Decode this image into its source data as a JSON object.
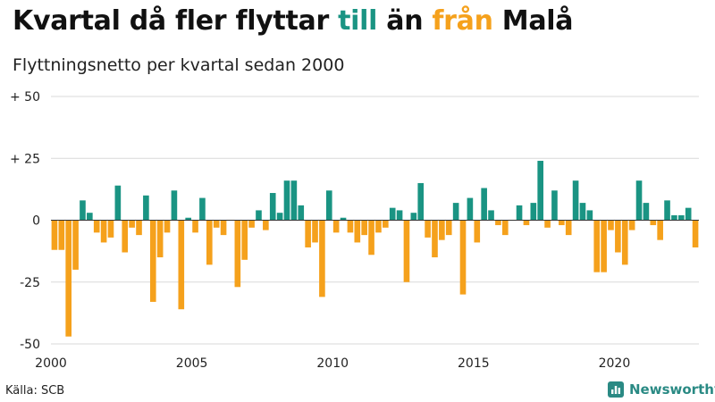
{
  "header": {
    "title_parts": [
      {
        "text": "Kvartal då fler flyttar ",
        "color": "#111111"
      },
      {
        "text": "till",
        "color": "#1a9483"
      },
      {
        "text": " än ",
        "color": "#111111"
      },
      {
        "text": "från",
        "color": "#f5a11c"
      },
      {
        "text": " Malå",
        "color": "#111111"
      }
    ],
    "subtitle": "Flyttningsnetto per kvartal sedan 2000"
  },
  "footer": {
    "source": "Källa: SCB",
    "logo_text": "Newsworthy",
    "logo_icon": "bar-chart-badge-icon"
  },
  "colors": {
    "positive": "#1a9483",
    "negative": "#f5a11c",
    "grid": "#d9d9d9",
    "zero_line": "#333333"
  },
  "chart_data": {
    "type": "bar",
    "title": "Kvartal då fler flyttar till än från Malå",
    "subtitle": "Flyttningsnetto per kvartal sedan 2000",
    "xlabel": "",
    "ylabel": "",
    "x_start": 2000,
    "periods_per_year": 4,
    "ylim": [
      -50,
      50
    ],
    "yticks": [
      {
        "value": 50,
        "label": "+ 50"
      },
      {
        "value": 25,
        "label": "+ 25"
      },
      {
        "value": 0,
        "label": "0"
      },
      {
        "value": -25,
        "label": "-25"
      },
      {
        "value": -50,
        "label": "-50"
      }
    ],
    "xticks": [
      {
        "value": 2000,
        "label": "2000"
      },
      {
        "value": 2005,
        "label": "2005"
      },
      {
        "value": 2010,
        "label": "2010"
      },
      {
        "value": 2015,
        "label": "2015"
      },
      {
        "value": 2020,
        "label": "2020"
      }
    ],
    "grid": true,
    "values": [
      -12,
      -12,
      -47,
      -20,
      8,
      3,
      -5,
      -9,
      -7,
      14,
      -13,
      -3,
      -6,
      10,
      -33,
      -15,
      -5,
      12,
      -36,
      1,
      -5,
      9,
      -18,
      -3,
      -6,
      0,
      -27,
      -16,
      -3,
      4,
      -4,
      11,
      3,
      16,
      16,
      6,
      -11,
      -9,
      -31,
      12,
      -5,
      1,
      -5,
      -9,
      -6,
      -14,
      -5,
      -3,
      5,
      4,
      -25,
      3,
      15,
      -7,
      -15,
      -8,
      -6,
      7,
      -30,
      9,
      -9,
      13,
      4,
      -2,
      -6,
      0,
      6,
      -2,
      7,
      24,
      -3,
      12,
      -2,
      -6,
      16,
      7,
      4,
      -21,
      -21,
      -4,
      -13,
      -18,
      -4,
      16,
      7,
      -2,
      -8,
      8,
      2,
      2,
      5,
      -11
    ]
  }
}
